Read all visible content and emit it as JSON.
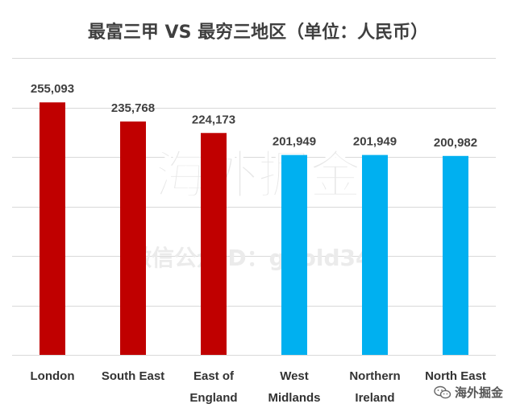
{
  "chart_data": {
    "type": "bar",
    "title": "最富三甲 VS 最穷三地区（单位：人民币）",
    "categories": [
      [
        "London"
      ],
      [
        "South East"
      ],
      [
        "East of",
        "England"
      ],
      [
        "West",
        "Midlands"
      ],
      [
        "Northern",
        "Ireland"
      ],
      [
        "North East"
      ]
    ],
    "values": [
      255093,
      235768,
      224173,
      201949,
      201949,
      200982
    ],
    "value_labels": [
      "255,093",
      "235,768",
      "224,173",
      "201,949",
      "201,949",
      "200,982"
    ],
    "bar_colors": [
      "#c00000",
      "#c00000",
      "#c00000",
      "#00b0f0",
      "#00b0f0",
      "#00b0f0"
    ],
    "ylim": [
      0,
      300000
    ],
    "y_grid_step": 50000,
    "grid": true,
    "y_tick_labels_shown": false,
    "legend": "none"
  },
  "watermark": {
    "main": "海外掘金",
    "sub": "微信公众ID：geold349"
  },
  "brand": {
    "label": "海外掘金",
    "icon": "wechat-icon"
  }
}
